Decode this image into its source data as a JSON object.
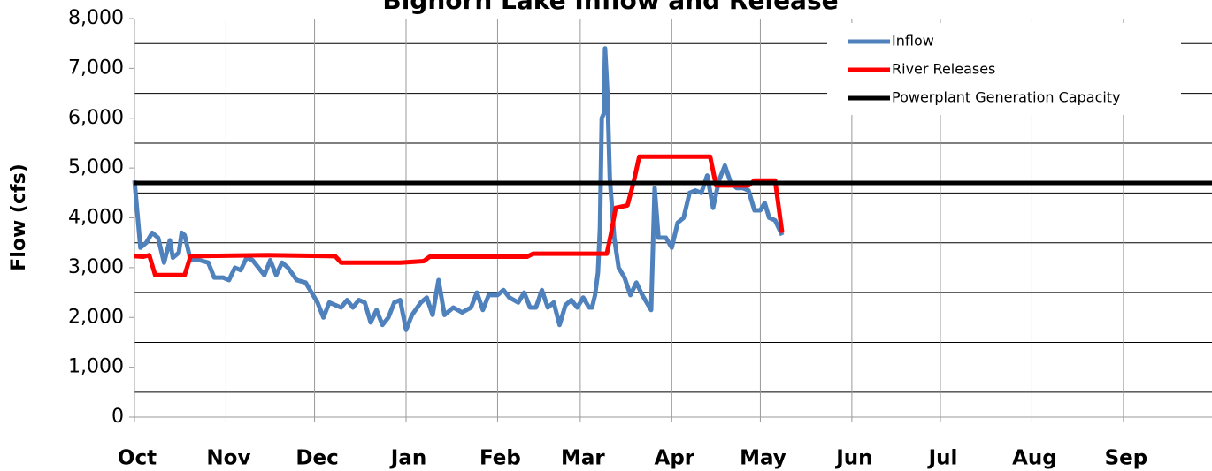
{
  "chart_data": {
    "type": "line",
    "title": "Bighorn Lake Inflow and Release",
    "ylabel": "Flow (cfs)",
    "xlim": [
      0,
      365
    ],
    "xticks": [
      {
        "value": 0,
        "label": "Oct"
      },
      {
        "value": 31,
        "label": "Nov"
      },
      {
        "value": 61,
        "label": "Dec"
      },
      {
        "value": 92,
        "label": "Jan"
      },
      {
        "value": 123,
        "label": "Feb"
      },
      {
        "value": 151,
        "label": "Mar"
      },
      {
        "value": 182,
        "label": "Apr"
      },
      {
        "value": 212,
        "label": "May"
      },
      {
        "value": 243,
        "label": "Jun"
      },
      {
        "value": 273,
        "label": "Jul"
      },
      {
        "value": 304,
        "label": "Aug"
      },
      {
        "value": 335,
        "label": "Sep"
      }
    ],
    "ylim": [
      0,
      8000
    ],
    "yticks": [
      {
        "value": 0,
        "label": "0"
      },
      {
        "value": 1000,
        "label": "1,000"
      },
      {
        "value": 2000,
        "label": "2,000"
      },
      {
        "value": 3000,
        "label": "3,000"
      },
      {
        "value": 4000,
        "label": "4,000"
      },
      {
        "value": 5000,
        "label": "5,000"
      },
      {
        "value": 6000,
        "label": "6,000"
      },
      {
        "value": 7000,
        "label": "7,000"
      },
      {
        "value": 8000,
        "label": "8,000"
      }
    ],
    "ygrid": [
      500,
      1500,
      2500,
      3500,
      4500,
      5500,
      6500,
      7500
    ],
    "legend": "upper right",
    "series": [
      {
        "name": "Inflow",
        "color": "#4f81bd",
        "x": [
          0,
          2,
          4,
          6,
          8,
          10,
          12,
          13,
          15,
          16,
          17,
          19,
          22,
          25,
          27,
          30,
          32,
          34,
          36,
          38,
          40,
          42,
          44,
          46,
          48,
          50,
          52,
          55,
          58,
          60,
          62,
          64,
          66,
          68,
          70,
          72,
          74,
          76,
          78,
          80,
          82,
          84,
          86,
          88,
          90,
          92,
          94,
          97,
          99,
          101,
          103,
          105,
          108,
          111,
          114,
          116,
          118,
          120,
          123,
          125,
          127,
          130,
          132,
          134,
          136,
          138,
          140,
          142,
          144,
          146,
          148,
          150,
          152,
          154,
          155,
          156,
          157,
          157.7,
          158.3,
          159,
          159.4,
          160.2,
          161,
          162.5,
          164,
          166,
          168,
          170,
          172,
          175,
          176.2,
          177.5,
          180,
          182,
          184,
          186,
          188,
          190,
          192,
          194,
          196,
          198,
          200,
          202,
          204,
          206,
          208,
          210,
          212,
          213.5,
          215,
          217,
          219.4
        ],
        "values": [
          4750,
          3400,
          3500,
          3700,
          3600,
          3100,
          3550,
          3200,
          3300,
          3700,
          3650,
          3150,
          3150,
          3100,
          2800,
          2800,
          2750,
          3000,
          2950,
          3200,
          3150,
          3000,
          2850,
          3150,
          2850,
          3100,
          3000,
          2750,
          2700,
          2500,
          2300,
          2000,
          2300,
          2250,
          2200,
          2350,
          2200,
          2350,
          2300,
          1900,
          2150,
          1850,
          2000,
          2300,
          2350,
          1750,
          2050,
          2300,
          2400,
          2050,
          2750,
          2050,
          2200,
          2100,
          2200,
          2500,
          2150,
          2450,
          2450,
          2550,
          2400,
          2300,
          2500,
          2200,
          2200,
          2550,
          2200,
          2300,
          1850,
          2250,
          2350,
          2200,
          2400,
          2200,
          2200,
          2450,
          2900,
          3800,
          6000,
          6100,
          7400,
          6500,
          4800,
          3600,
          3000,
          2800,
          2450,
          2700,
          2450,
          2150,
          4600,
          3600,
          3600,
          3400,
          3900,
          4000,
          4500,
          4550,
          4500,
          4850,
          4200,
          4750,
          5050,
          4700,
          4600,
          4600,
          4550,
          4150,
          4150,
          4300,
          4000,
          3950,
          3650
        ]
      },
      {
        "name": "River Releases",
        "color": "#ff0000",
        "x": [
          0,
          3,
          5,
          7,
          17,
          19,
          45,
          68,
          70,
          90,
          98,
          100,
          133,
          135,
          160,
          161.5,
          163,
          167,
          169,
          171,
          195,
          197,
          208,
          210,
          217,
          219.4
        ],
        "values": [
          3230,
          3220,
          3250,
          2850,
          2850,
          3230,
          3250,
          3230,
          3100,
          3100,
          3130,
          3220,
          3220,
          3280,
          3280,
          3700,
          4200,
          4250,
          4700,
          5230,
          5230,
          4650,
          4650,
          4750,
          4750,
          3700
        ]
      },
      {
        "name": "Powerplant Generation Capacity",
        "color": "#000000",
        "x": [
          0,
          365
        ],
        "values": [
          4700,
          4700
        ]
      }
    ]
  }
}
